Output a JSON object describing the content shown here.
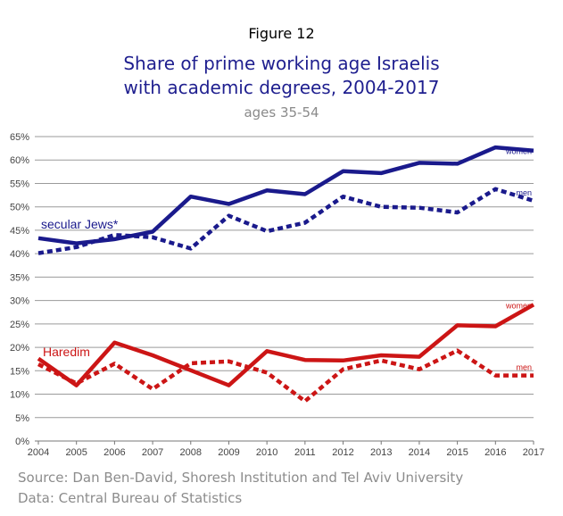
{
  "header": {
    "figure_label": "Figure 12",
    "title_line1": "Share of prime working age Israelis",
    "title_line2": "with academic degrees, 2004-2017",
    "subtitle": "ages 35-54"
  },
  "footer": {
    "source": "Source: Dan Ben-David, Shoresh Institution and Tel Aviv University",
    "data": "Data: Central Bureau of Statistics"
  },
  "chart_data": {
    "type": "line",
    "x": [
      2004,
      2005,
      2006,
      2007,
      2008,
      2009,
      2010,
      2011,
      2012,
      2013,
      2014,
      2015,
      2016,
      2017
    ],
    "ylim": [
      0,
      65
    ],
    "y_ticks": [
      "0%",
      "5%",
      "10%",
      "15%",
      "20%",
      "25%",
      "30%",
      "35%",
      "40%",
      "45%",
      "50%",
      "55%",
      "60%",
      "65%"
    ],
    "x_ticks": [
      "2004",
      "2005",
      "2006",
      "2007",
      "2008",
      "2009",
      "2010",
      "2011",
      "2012",
      "2013",
      "2014",
      "2015",
      "2016",
      "2017"
    ],
    "grid": true,
    "group_labels": {
      "secular": "secular Jews*",
      "haredim": "Haredim"
    },
    "series": [
      {
        "name": "women",
        "group": "secular",
        "color": "#1a1a8c",
        "dashed": false,
        "values": [
          43.3,
          42.2,
          43.1,
          44.7,
          52.2,
          50.6,
          53.5,
          52.7,
          57.6,
          57.2,
          59.4,
          59.2,
          62.7,
          62.0
        ]
      },
      {
        "name": "men",
        "group": "secular",
        "color": "#1a1a8c",
        "dashed": true,
        "values": [
          40.1,
          41.4,
          44.0,
          43.5,
          41.1,
          48.1,
          44.8,
          46.6,
          52.2,
          50.0,
          49.8,
          48.8,
          53.8,
          51.3
        ]
      },
      {
        "name": "women",
        "group": "haredim",
        "color": "#cc1515",
        "dashed": false,
        "values": [
          17.6,
          11.9,
          21.0,
          18.3,
          15.1,
          11.9,
          19.2,
          17.3,
          17.2,
          18.3,
          18.0,
          24.7,
          24.5,
          29.1
        ]
      },
      {
        "name": "men",
        "group": "haredim",
        "color": "#cc1515",
        "dashed": true,
        "values": [
          16.4,
          12.3,
          16.5,
          11.1,
          16.6,
          17.0,
          14.6,
          8.5,
          15.3,
          17.2,
          15.3,
          19.3,
          14.0,
          14.0
        ]
      }
    ]
  }
}
